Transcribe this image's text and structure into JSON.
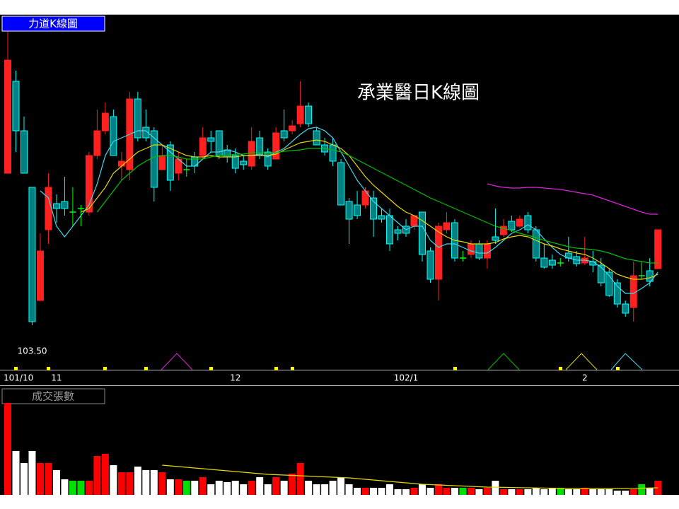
{
  "chart_data": [
    {
      "type": "candlestick",
      "title": "力道K線圖",
      "annotation": "承業醫日K線圖",
      "min_label": {
        "value": 103.5,
        "label": "103.50"
      },
      "categories": [
        "101/10",
        null,
        null,
        null,
        null,
        null,
        "11",
        null,
        null,
        null,
        null,
        null,
        null,
        null,
        null,
        null,
        null,
        null,
        null,
        null,
        null,
        null,
        null,
        null,
        null,
        null,
        null,
        null,
        "12",
        null,
        null,
        null,
        null,
        null,
        null,
        null,
        null,
        null,
        null,
        null,
        null,
        null,
        null,
        null,
        null,
        null,
        null,
        null,
        null,
        "102/1",
        null,
        null,
        null,
        null,
        null,
        null,
        null,
        null,
        null,
        null,
        null,
        null,
        null,
        null,
        null,
        null,
        null,
        null,
        null,
        null,
        null,
        "2",
        null,
        null,
        null,
        null,
        null,
        null,
        null,
        null,
        null
      ],
      "open": [
        125,
        138,
        131,
        123,
        107,
        117,
        120.7,
        121,
        119.5,
        120,
        119.5,
        127.5,
        131,
        133,
        126,
        125.5,
        135.5,
        131.5,
        131,
        125.5,
        129,
        125,
        125.5,
        127.3,
        127.5,
        130,
        131,
        128.3,
        127.5,
        126.7,
        126,
        130,
        128,
        127,
        131,
        131,
        132,
        134.5,
        131,
        129,
        129,
        126.5,
        121,
        120.5,
        120.5,
        121.5,
        119,
        119,
        117,
        117.5,
        117.5,
        119.5,
        114,
        110,
        117,
        118,
        113,
        113.5,
        115,
        113,
        116,
        116.3,
        118.2,
        117.5,
        119,
        117,
        113,
        112.7,
        112.3,
        113.7,
        113.2,
        112.3,
        112.5,
        112,
        111,
        109.5,
        106.5,
        106,
        110.5,
        111.2,
        111.5
      ],
      "high": [
        145,
        139.5,
        133,
        123,
        116.5,
        125,
        122,
        124.5,
        123,
        120.5,
        128,
        134,
        135,
        134,
        128,
        136.5,
        136.5,
        134,
        131.5,
        129,
        129.5,
        128,
        127,
        128,
        131.5,
        131,
        131,
        129,
        128.5,
        127.5,
        131.5,
        131,
        128.5,
        131.5,
        134,
        132.5,
        138,
        135,
        131.5,
        130,
        130,
        127,
        121.5,
        122.5,
        123,
        122.5,
        120,
        120,
        117.5,
        118.5,
        119,
        119.5,
        114.5,
        118,
        119.5,
        118.5,
        114,
        115.5,
        115.5,
        115.5,
        120,
        118.5,
        119,
        119,
        119.5,
        117.5,
        115,
        113.5,
        113,
        116,
        114,
        116,
        114,
        113,
        111.5,
        110,
        107,
        112.5,
        112.5,
        113,
        117
      ],
      "low": [
        125,
        128,
        125,
        103.5,
        107,
        115,
        118,
        119,
        117.5,
        117.5,
        119,
        127,
        130.5,
        127.5,
        124,
        124,
        129.5,
        129.5,
        121,
        125.5,
        122.5,
        124,
        124.5,
        125,
        127,
        128,
        127,
        126.5,
        125,
        125.5,
        125.5,
        127,
        125.5,
        127,
        129.5,
        130.5,
        131.5,
        131.5,
        129,
        127.5,
        126,
        120.5,
        115,
        118.5,
        120,
        116,
        118,
        114,
        115.5,
        116,
        117,
        112.5,
        109.5,
        107,
        116.5,
        112.5,
        112.5,
        113,
        112.7,
        111.5,
        115,
        116,
        116.7,
        117.3,
        116.5,
        112.5,
        111.5,
        111.5,
        111.8,
        112.5,
        111.8,
        112,
        111,
        109,
        107.5,
        106,
        104.7,
        104,
        110,
        109,
        111.5
      ],
      "close": [
        141,
        131,
        125,
        104,
        114,
        123,
        120,
        120,
        119.5,
        120,
        127.5,
        131,
        133.5,
        127.5,
        126.7,
        135.5,
        130,
        130,
        123,
        127.5,
        124,
        127,
        125.5,
        126,
        130,
        129.5,
        127.5,
        127.3,
        125.7,
        126.2,
        129.5,
        127.5,
        126,
        130.7,
        130,
        131.7,
        134.5,
        132,
        129,
        128,
        126.7,
        120.5,
        118.5,
        119,
        122.5,
        118.5,
        118.5,
        115,
        116.5,
        116.5,
        119,
        113.5,
        110,
        117.5,
        118,
        113,
        113,
        115,
        113,
        115,
        115.5,
        117.5,
        117,
        118.5,
        117,
        113,
        111.7,
        112,
        112.3,
        113,
        112.2,
        113,
        112,
        109.5,
        107.7,
        106.5,
        105.2,
        110.5,
        110.5,
        109.7,
        117
      ],
      "up_color": "#ff2020",
      "down_color": "#00ffff",
      "down_fill": "#008080",
      "flat_color": "#00ff00",
      "series": [
        {
          "color": "#40d8f0",
          "values": [
            null,
            null,
            null,
            null,
            122.5,
            121.5,
            117.5,
            116,
            117.5,
            119,
            120.5,
            123.5,
            127.5,
            129.5,
            130,
            130.5,
            131,
            131,
            130,
            129,
            128,
            127,
            126,
            126,
            127,
            128,
            128,
            128.3,
            128,
            127.5,
            127.5,
            127.7,
            127.3,
            128,
            128.5,
            129.5,
            130.5,
            131.3,
            131.5,
            131,
            130,
            128,
            126,
            124,
            122.5,
            121,
            120,
            119,
            118,
            117,
            117.5,
            117.5,
            115.5,
            114.5,
            115,
            115,
            114.5,
            114,
            113.7,
            113.7,
            114.5,
            115.5,
            116.5,
            117,
            117.7,
            117,
            115.7,
            114.5,
            113.5,
            113,
            112.7,
            112.7,
            112.5,
            111.7,
            110.5,
            109,
            108,
            108,
            108.7,
            109.5,
            111
          ]
        },
        {
          "color": "#e8d800",
          "values": [
            null,
            null,
            null,
            null,
            null,
            null,
            null,
            null,
            null,
            119.5,
            120,
            121.5,
            123,
            125,
            126,
            127,
            128,
            128.5,
            129,
            129,
            128.5,
            128,
            127.5,
            127.3,
            127.3,
            127.5,
            127.3,
            127.3,
            127.3,
            127.5,
            127.5,
            127.5,
            127.5,
            127.7,
            128.3,
            128.8,
            129.3,
            129.5,
            129.7,
            129.5,
            129,
            128.5,
            127.5,
            126,
            124.5,
            123.3,
            122.3,
            121.3,
            120.3,
            119.5,
            119,
            118.3,
            117.5,
            116.7,
            116,
            115.5,
            115.3,
            115,
            115,
            115,
            115.2,
            115.7,
            116,
            116.2,
            116,
            115.5,
            115,
            114.7,
            114.3,
            114,
            113.7,
            113.5,
            113,
            112.3,
            111.5,
            110.7,
            110.3,
            110,
            110,
            110.2,
            110.7
          ]
        },
        {
          "color": "#00c000",
          "values": [
            null,
            null,
            null,
            null,
            null,
            null,
            null,
            null,
            null,
            null,
            null,
            119.5,
            121,
            122.5,
            124,
            125,
            126,
            126.7,
            127.3,
            127.5,
            127.5,
            127.3,
            127,
            127,
            127,
            127.3,
            127.5,
            127.5,
            127.7,
            127.7,
            127.9,
            127.9,
            127.9,
            127.9,
            128.1,
            128.2,
            128.3,
            128.5,
            128.5,
            128.5,
            128.3,
            128,
            127.5,
            126.9,
            126.3,
            125.7,
            125.1,
            124.5,
            123.9,
            123.3,
            122.7,
            122.1,
            121.5,
            121,
            120.5,
            120,
            119.5,
            119,
            118.5,
            118,
            117.5,
            117.2,
            116.9,
            116.5,
            116.2,
            115.9,
            115.5,
            115.2,
            114.9,
            114.6,
            114.4,
            114.3,
            114.2,
            114,
            113.7,
            113.3,
            112.9,
            112.7,
            112.5,
            112.3,
            112.3
          ]
        },
        {
          "color": "#e020e0",
          "values": [
            null,
            null,
            null,
            null,
            null,
            null,
            null,
            null,
            null,
            null,
            null,
            null,
            null,
            null,
            null,
            null,
            null,
            null,
            null,
            null,
            null,
            null,
            null,
            null,
            null,
            null,
            null,
            null,
            null,
            null,
            null,
            null,
            null,
            null,
            null,
            null,
            null,
            null,
            null,
            null,
            null,
            null,
            null,
            null,
            null,
            null,
            null,
            null,
            null,
            null,
            null,
            null,
            null,
            null,
            null,
            null,
            null,
            null,
            null,
            123.5,
            123.2,
            123,
            122.9,
            122.9,
            123,
            123,
            122.9,
            122.8,
            122.7,
            122.5,
            122.3,
            122.1,
            121.9,
            121.5,
            121.1,
            120.7,
            120.3,
            119.9,
            119.5,
            119.2,
            119.2
          ]
        }
      ],
      "ylim": [
        97.5,
        147.5
      ]
    },
    {
      "type": "bar",
      "title": "成交張數",
      "values": [
        1300,
        620,
        450,
        620,
        450,
        450,
        350,
        220,
        200,
        200,
        200,
        550,
        580,
        420,
        320,
        320,
        400,
        350,
        350,
        320,
        220,
        220,
        200,
        200,
        250,
        150,
        200,
        180,
        200,
        150,
        200,
        250,
        150,
        250,
        200,
        300,
        450,
        200,
        150,
        150,
        200,
        250,
        150,
        100,
        100,
        100,
        100,
        150,
        80,
        80,
        100,
        150,
        100,
        150,
        100,
        100,
        100,
        100,
        80,
        100,
        200,
        80,
        80,
        80,
        80,
        100,
        80,
        100,
        100,
        80,
        80,
        100,
        80,
        80,
        80,
        60,
        60,
        80,
        150,
        100,
        200
      ],
      "up_color": "#ff0000",
      "down_color": "#ffffff",
      "flat_color": "#00e000",
      "series": [
        {
          "color": "#e8d800",
          "values": [
            null,
            null,
            null,
            null,
            null,
            null,
            null,
            null,
            null,
            null,
            null,
            null,
            null,
            null,
            null,
            null,
            null,
            null,
            null,
            420,
            410,
            400,
            390,
            380,
            370,
            360,
            350,
            340,
            330,
            320,
            310,
            300,
            290,
            285,
            280,
            275,
            270,
            265,
            260,
            255,
            250,
            245,
            240,
            230,
            220,
            210,
            200,
            190,
            180,
            170,
            160,
            150,
            145,
            140,
            135,
            130,
            125,
            120,
            115,
            110,
            108,
            106,
            104,
            102,
            100,
            98,
            96,
            94,
            92,
            90,
            90,
            90,
            90,
            90,
            90,
            90,
            90,
            92,
            95,
            98,
            100
          ]
        }
      ],
      "ylim": [
        0,
        1300
      ]
    }
  ]
}
